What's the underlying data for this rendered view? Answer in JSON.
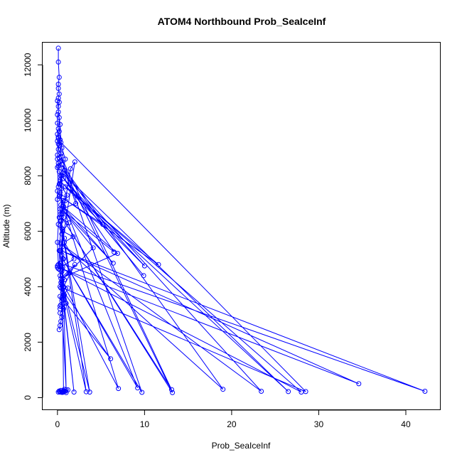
{
  "chart_data": {
    "type": "line",
    "title": "ATOM4 Northbound Prob_SeaIceInf",
    "xlabel": "Prob_SeaIceInf",
    "ylabel": "Altitude (m)",
    "xlim": [
      -1.7,
      44
    ],
    "ylim": [
      -450,
      12800
    ],
    "xticks": [
      0,
      10,
      20,
      30,
      40
    ],
    "xtick_labels": [
      "0",
      "10",
      "20",
      "30",
      "40"
    ],
    "yticks": [
      0,
      2000,
      4000,
      6000,
      8000,
      10000,
      12000
    ],
    "ytick_labels": [
      "0",
      "2000",
      "4000",
      "6000",
      "8000",
      "10000",
      "12000"
    ],
    "grid": false,
    "series_color": "#0000ff",
    "marker": "open-circle",
    "series": [
      {
        "x": [
          0.1,
          0.1,
          0.2,
          0.1,
          0.1,
          0.2,
          0.1,
          0.2,
          0.1,
          0.1,
          0.2,
          0.3,
          0.2,
          0.1,
          0.3,
          0.2,
          0.1,
          0.4,
          0.2,
          0.3,
          0.1,
          0.2,
          0.4,
          0.3,
          0.2,
          0.5,
          0.3,
          0.2,
          0.6,
          0.4,
          0.3,
          0.5,
          0.7,
          0.4,
          0.3,
          0.6,
          0.5,
          0.8,
          0.4,
          0.6,
          0.3,
          0.5,
          0.7,
          0.4,
          0.6,
          0.5,
          0.3,
          0.8,
          0.5,
          0.4,
          0.6,
          0.3,
          0.5,
          0.4,
          0.7,
          0.3,
          0.5,
          0.4,
          0.3,
          0.2
        ],
        "y": [
          12600,
          12100,
          11550,
          11300,
          11150,
          10950,
          10800,
          10650,
          10500,
          10300,
          10100,
          9850,
          9600,
          9400,
          9300,
          9100,
          8950,
          8800,
          8650,
          8500,
          8350,
          8150,
          8000,
          7850,
          7700,
          7550,
          7400,
          7250,
          7100,
          6950,
          6800,
          6650,
          6500,
          6350,
          6200,
          6050,
          5900,
          5750,
          5600,
          5450,
          5300,
          5150,
          5000,
          4850,
          4700,
          4550,
          4400,
          4250,
          4100,
          3950,
          3800,
          3650,
          3500,
          3350,
          3200,
          3050,
          2900,
          2750,
          2600,
          2450
        ]
      },
      {
        "x": [
          0.3,
          42.2,
          0.4,
          34.6,
          0.5,
          28.0,
          0.3,
          26.5,
          0.6,
          23.4,
          0.4,
          19.0,
          0.5,
          13.2,
          0.3,
          13.1,
          0.4,
          9.7,
          0.6,
          9.2,
          0.3,
          7.0,
          0.5,
          3.7,
          0.4,
          3.3,
          0.6,
          1.9,
          0.3,
          1.0,
          0.5,
          0.7,
          0.4,
          28.5,
          0.3,
          6.1,
          0.5
        ],
        "y": [
          4850,
          230,
          5300,
          500,
          4650,
          200,
          7800,
          220,
          8100,
          230,
          5550,
          300,
          8400,
          180,
          6600,
          290,
          8700,
          190,
          5000,
          350,
          7300,
          330,
          4200,
          200,
          6400,
          210,
          3900,
          200,
          4600,
          280,
          6100,
          220,
          9200,
          220,
          4000,
          1400,
          3600
        ]
      },
      {
        "x": [
          0.0,
          0.5,
          0.9,
          0.3,
          1.1,
          0.7,
          0.2,
          1.3,
          0.6,
          1.8,
          0.8,
          1.9,
          0.4,
          1.4,
          0.6,
          4.1,
          0.5,
          2.1,
          0.8,
          5.2,
          0.6,
          11.6,
          0.9,
          10.0,
          0.7,
          9.9,
          0.5,
          6.5,
          0.8,
          6.4,
          0.6,
          6.9,
          0.4,
          2.0,
          0.7,
          1.0,
          0.3
        ],
        "y": [
          10700,
          9000,
          8600,
          7700,
          7300,
          6900,
          6500,
          6300,
          6000,
          5800,
          5600,
          5000,
          4700,
          4500,
          4300,
          5400,
          6800,
          7000,
          8200,
          6250,
          7200,
          4800,
          7600,
          4750,
          7900,
          4400,
          8000,
          5250,
          6700,
          4850,
          6900,
          5200,
          4300,
          4800,
          4000,
          3400,
          3200
        ]
      },
      {
        "x": [
          0.0,
          0.0,
          0.1,
          0.0,
          0.1,
          0.0,
          0.1,
          0.0,
          0.0,
          0.1,
          0.0,
          0.1,
          0.0,
          0.0,
          0.1,
          0.0,
          0.1,
          0.0,
          0.0,
          0.1,
          2.0,
          1.5,
          0.9,
          0.5,
          0.2,
          0.4,
          1.2,
          0.8,
          0.6,
          0.3
        ],
        "y": [
          10200,
          9900,
          9700,
          9500,
          9350,
          9250,
          9150,
          8750,
          8600,
          8450,
          8300,
          7600,
          7450,
          7150,
          6250,
          5600,
          4800,
          4750,
          4700,
          4650,
          8500,
          8250,
          7100,
          6600,
          5300,
          4150,
          3950,
          3700,
          3550,
          3300
        ]
      },
      {
        "x": [
          0.1,
          0.3,
          0.6,
          0.9,
          1.2,
          0.4,
          0.5,
          0.8,
          1.0,
          0.2,
          0.3,
          0.7,
          0.6,
          0.5
        ],
        "y": [
          200,
          220,
          190,
          230,
          280,
          260,
          210,
          300,
          180,
          240,
          200,
          250,
          230,
          190
        ]
      }
    ]
  }
}
